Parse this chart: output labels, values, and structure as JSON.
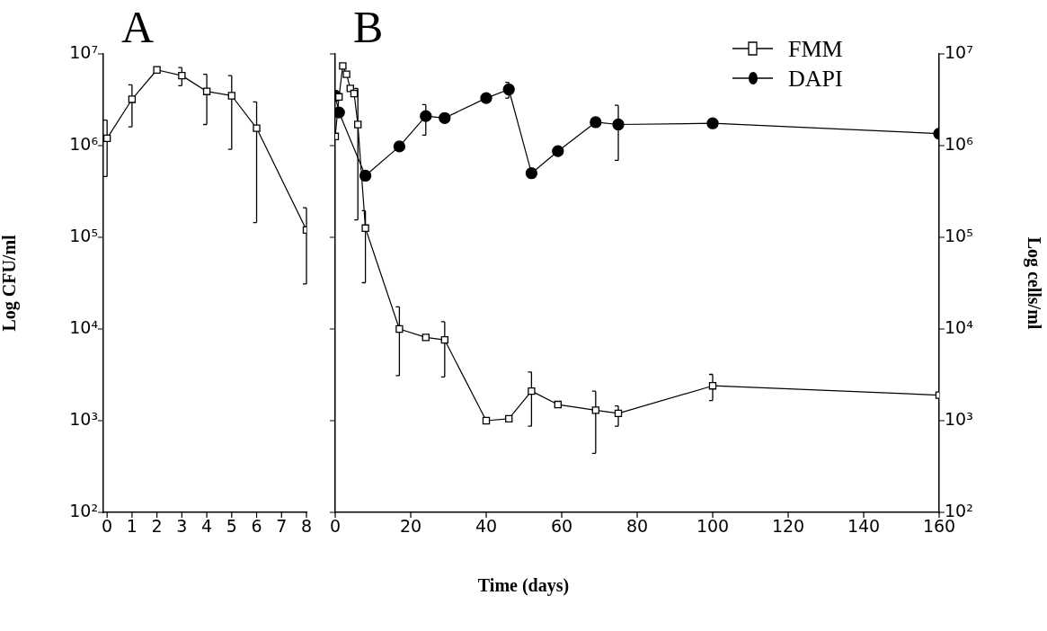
{
  "chart_data": [
    {
      "type": "line",
      "title": "A",
      "ylabel": "Log CFU/ml",
      "xlim": [
        -0.15,
        8
      ],
      "xticks": [
        0,
        1,
        2,
        3,
        4,
        5,
        6,
        7,
        8
      ],
      "ylim": [
        100,
        10000000
      ],
      "log": "y",
      "grid": false,
      "legend": false,
      "yticks": [
        {
          "value": 100,
          "label": "10²"
        },
        {
          "value": 1000,
          "label": "10³"
        },
        {
          "value": 10000,
          "label": "10⁴"
        },
        {
          "value": 100000,
          "label": "10⁵"
        },
        {
          "value": 1000000,
          "label": "10⁶"
        },
        {
          "value": 10000000,
          "label": "10⁷"
        }
      ],
      "series": [
        {
          "color": "#000000",
          "marker": "square",
          "x": [
            0,
            1,
            2,
            3,
            4,
            5,
            6,
            8
          ],
          "values": [
            1200000,
            3200000,
            6700000,
            5800000,
            3900000,
            3500000,
            1550000,
            120000
          ],
          "errors": [
            [
              460000,
              1900000
            ],
            [
              1600000,
              4600000
            ],
            null,
            [
              4500000,
              7100000
            ],
            [
              1700000,
              6000000
            ],
            [
              910000,
              5800000
            ],
            [
              145000,
              3000000
            ],
            [
              31000,
              210000
            ]
          ]
        }
      ]
    },
    {
      "type": "line",
      "title": "B",
      "xlabel": "Time (days)",
      "ylabel": "Log cells/ml",
      "xlim": [
        0,
        160
      ],
      "xticks": [
        0,
        20,
        40,
        60,
        80,
        100,
        120,
        140,
        160
      ],
      "ylim": [
        100,
        10000000
      ],
      "log": "y",
      "grid": false,
      "legend": "top right",
      "yticks": [
        {
          "value": 100,
          "label": "10²"
        },
        {
          "value": 1000,
          "label": "10³"
        },
        {
          "value": 10000,
          "label": "10⁴"
        },
        {
          "value": 100000,
          "label": "10⁵"
        },
        {
          "value": 1000000,
          "label": "10⁶"
        },
        {
          "value": 10000000,
          "label": "10⁷"
        }
      ],
      "series": [
        {
          "name": "FMM",
          "color": "#000000",
          "marker": "square",
          "x": [
            0,
            1,
            2,
            3,
            4,
            5,
            6,
            8,
            17,
            24,
            29,
            40,
            46,
            52,
            59,
            69,
            75,
            100,
            160
          ],
          "values": [
            1260000,
            3400000,
            7400000,
            6000000,
            4200000,
            3700000,
            1700000,
            126000,
            10000,
            8100,
            7600,
            1000,
            1050,
            2100,
            1500,
            1300,
            1200,
            2400,
            1900
          ],
          "errors": [
            null,
            null,
            null,
            null,
            null,
            null,
            [
              155000,
              4200000
            ],
            [
              32000,
              195000
            ],
            [
              3100,
              17400
            ],
            null,
            [
              3000,
              12000
            ],
            null,
            null,
            [
              870,
              3400
            ],
            null,
            [
              440,
              2100
            ],
            [
              870,
              1450
            ],
            [
              1660,
              3200
            ],
            null
          ]
        },
        {
          "name": "DAPI",
          "color": "#000000",
          "marker": "circle",
          "x": [
            0,
            1,
            8,
            17,
            24,
            29,
            40,
            46,
            52,
            59,
            69,
            75,
            100,
            160
          ],
          "values": [
            3500000,
            2300000,
            470000,
            980000,
            2100000,
            2000000,
            3300000,
            4100000,
            500000,
            870000,
            1800000,
            1700000,
            1750000,
            1350000
          ],
          "errors": [
            null,
            null,
            null,
            null,
            [
              1300000,
              2800000
            ],
            null,
            null,
            [
              3300000,
              4900000
            ],
            null,
            null,
            null,
            [
              690000,
              2750000
            ],
            null,
            null
          ]
        }
      ]
    }
  ]
}
